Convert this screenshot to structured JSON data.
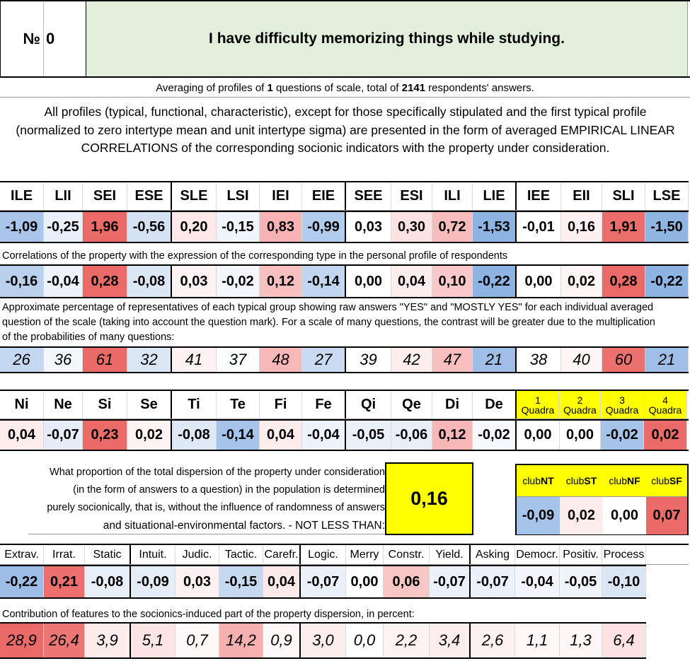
{
  "header": {
    "number_label": "№",
    "number_value": "0",
    "question": "I have difficulty memorizing things while studying."
  },
  "averaging": {
    "prefix": "Averaging of profiles of ",
    "count": "1",
    "middle": " questions of scale, total of ",
    "total": "2141",
    "suffix": " respondents' answers."
  },
  "intro_text": "All profiles (typical, functional, characteristic), except for those specifically stipulated and the first typical profile (normalized to zero intertype mean and unit intertype sigma) are presented in the form of averaged EMPIRICAL LINEAR CORRELATIONS of the corresponding socionic indicators with the property under consideration.",
  "types": {
    "labels": [
      "ILE",
      "LII",
      "SEI",
      "ESE",
      "SLE",
      "LSI",
      "IEI",
      "EIE",
      "SEE",
      "ESI",
      "ILI",
      "LIE",
      "IEE",
      "EII",
      "SLI",
      "LSE"
    ],
    "normalized": [
      "-1,09",
      "-0,25",
      "1,96",
      "-0,56",
      "0,20",
      "-0,15",
      "0,83",
      "-0,99",
      "0,03",
      "0,30",
      "0,72",
      "-1,53",
      "-0,01",
      "0,16",
      "1,91",
      "-1,50"
    ],
    "normalized_colors": [
      "#a9c6ea",
      "#e9f0fa",
      "#ea6a68",
      "#d4e2f4",
      "#fde9e9",
      "#f0f5fb",
      "#f7b3b3",
      "#b2cced",
      "#ffffff",
      "#fde2e2",
      "#f8bcbc",
      "#8eb4e3",
      "#ffffff",
      "#fef0f0",
      "#ec6e6c",
      "#8fb5e3"
    ],
    "corr_note": "Correlations of the property with the expression of the corresponding type in the personal profile of respondents",
    "correlations": [
      "-0,16",
      "-0,04",
      "0,28",
      "-0,08",
      "0,03",
      "-0,02",
      "0,12",
      "-0,14",
      "0,00",
      "0,04",
      "0,10",
      "-0,22",
      "0,00",
      "0,02",
      "0,28",
      "-0,22"
    ],
    "correlation_colors": [
      "#bad1ee",
      "#eef3fb",
      "#ea6a68",
      "#dce7f6",
      "#fef3f3",
      "#f3f7fc",
      "#f9c0c0",
      "#c2d6f0",
      "#ffffff",
      "#fdeeee",
      "#fac8c8",
      "#8eb4e3",
      "#ffffff",
      "#fef5f5",
      "#ea6a68",
      "#8eb4e3"
    ],
    "pct_note": "Approximate percentage of representatives of each typical group showing raw answers \"YES\" and \"MOSTLY YES\" for each individual averaged question of the scale (taking into account the question mark). For a scale of many questions, the contrast will be greater due to the multiplication of the probabilities of many questions:",
    "percentages": [
      "26",
      "36",
      "61",
      "32",
      "41",
      "37",
      "48",
      "27",
      "39",
      "42",
      "47",
      "21",
      "38",
      "40",
      "60",
      "21"
    ],
    "percentage_colors": [
      "#c5d8f1",
      "#f3f7fc",
      "#ea6a68",
      "#dbe6f5",
      "#fef2f2",
      "#fbfdfe",
      "#f8b8b8",
      "#c9dbf2",
      "#ffffff",
      "#fdeded",
      "#f9bfbf",
      "#9fbfe8",
      "#ffffff",
      "#fef6f6",
      "#ec706e",
      "#9fbfe8"
    ]
  },
  "functions": {
    "labels": [
      "Ni",
      "Ne",
      "Si",
      "Se",
      "Ti",
      "Te",
      "Fi",
      "Fe",
      "Qi",
      "Qe",
      "Di",
      "De"
    ],
    "values": [
      "0,04",
      "-0,07",
      "0,23",
      "0,02",
      "-0,08",
      "-0,14",
      "0,04",
      "-0,04",
      "-0,05",
      "-0,06",
      "0,12",
      "-0,02"
    ],
    "colors": [
      "#fdecec",
      "#e4edf8",
      "#ea6a68",
      "#fef4f4",
      "#dfe9f6",
      "#a6c3e9",
      "#fdecec",
      "#eef3fb",
      "#ebf1fa",
      "#e7eff9",
      "#f8b6b6",
      "#f5f8fc"
    ],
    "quadra_num": [
      "1",
      "2",
      "3",
      "4"
    ],
    "quadra_word": "Quadra",
    "quadra_values": [
      "0,00",
      "0,00",
      "-0,02",
      "0,02"
    ],
    "quadra_colors": [
      "#ffffff",
      "#ffffff",
      "#a6c3e9",
      "#ea6a68"
    ]
  },
  "dispersion": {
    "text_lines": [
      "What proportion of the total dispersion of the property under consideration",
      "(in the form of answers to a question) in the population is determined",
      "purely socionically, that is, without the influence of randomness of answers",
      "and situational-environmental factors. - NOT LESS THAN:"
    ],
    "value": "0,16",
    "highlight_color": "#ffff00"
  },
  "clubs": {
    "prefix": "club",
    "names": [
      "NT",
      "ST",
      "NF",
      "SF"
    ],
    "values": [
      "-0,09",
      "0,02",
      "0,00",
      "0,07"
    ],
    "colors": [
      "#a6c3e9",
      "#fdecec",
      "#ffffff",
      "#ea6a68"
    ]
  },
  "features": {
    "labels": [
      "Extrav.",
      "Irrat.",
      "Static",
      "Intuit.",
      "Judic.",
      "Tactic.",
      "Carefr.",
      "Logic.",
      "Merry",
      "Constr.",
      "Yield.",
      "Asking",
      "Democr.",
      "Positiv.",
      "Process"
    ],
    "values": [
      "-0,22",
      "0,21",
      "-0,08",
      "-0,09",
      "0,03",
      "-0,15",
      "0,04",
      "-0,07",
      "0,00",
      "0,06",
      "-0,07",
      "-0,07",
      "-0,04",
      "-0,05",
      "-0,10"
    ],
    "value_colors": [
      "#9dbde7",
      "#ec6f6d",
      "#e7eff9",
      "#e4edf8",
      "#fef1f1",
      "#c7d9f1",
      "#fde9e9",
      "#eaf1fa",
      "#ffffff",
      "#f9c6c6",
      "#eaf1fa",
      "#eaf1fa",
      "#f2f6fc",
      "#eff4fb",
      "#dbe6f5"
    ],
    "contrib_note": "Contribution of features to the socionics-induced part of the property dispersion, in percent:",
    "contributions": [
      "28,9",
      "26,4",
      "3,9",
      "5,1",
      "0,7",
      "14,2",
      "0,9",
      "3,0",
      "0,0",
      "2,2",
      "3,4",
      "2,6",
      "1,1",
      "1,3",
      "6,4"
    ],
    "contribution_colors": [
      "#ea6a68",
      "#ec7674",
      "#fdecec",
      "#fde5e5",
      "#fffafa",
      "#f7b0b0",
      "#fef8f8",
      "#fdeeee",
      "#ffffff",
      "#fef3f3",
      "#fdeded",
      "#fef1f1",
      "#fef8f8",
      "#fef7f7",
      "#fce2e2"
    ]
  }
}
